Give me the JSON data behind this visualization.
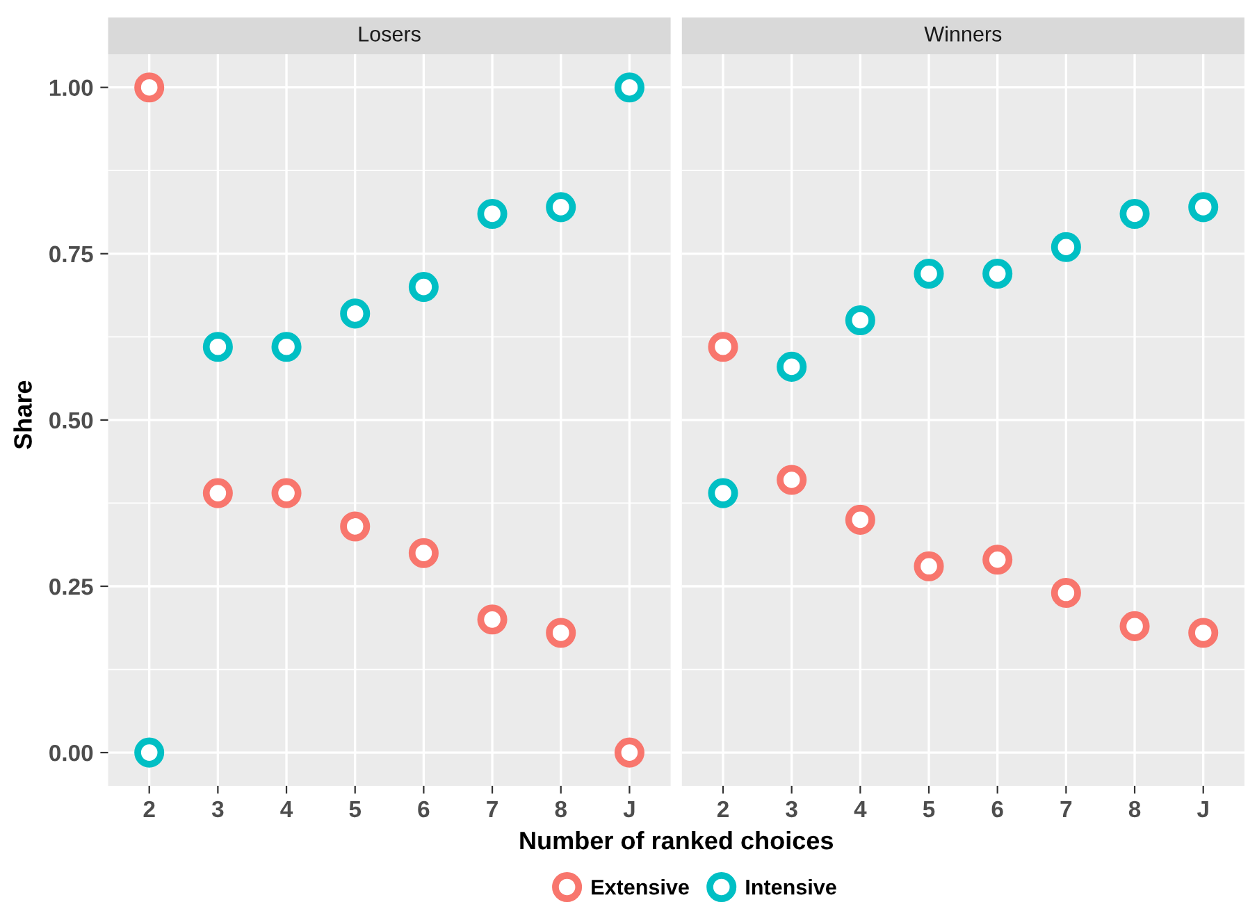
{
  "chart_data": [
    {
      "type": "scatter",
      "title": "Losers",
      "xlabel": "Number of ranked choices",
      "ylabel": "Share",
      "categories": [
        "2",
        "3",
        "4",
        "5",
        "6",
        "7",
        "8",
        "J"
      ],
      "series": [
        {
          "name": "Extensive",
          "color": "#f8766d",
          "values": [
            1.0,
            0.39,
            0.39,
            0.34,
            0.3,
            0.2,
            0.18,
            0.0
          ]
        },
        {
          "name": "Intensive",
          "color": "#00bfc4",
          "values": [
            0.0,
            0.61,
            0.61,
            0.66,
            0.7,
            0.81,
            0.82,
            1.0
          ]
        }
      ],
      "ylim": [
        -0.05,
        1.05
      ],
      "yticks": [
        {
          "value": 0,
          "label": "0.00"
        },
        {
          "value": 0.25,
          "label": "0.25"
        },
        {
          "value": 0.5,
          "label": "0.50"
        },
        {
          "value": 0.75,
          "label": "0.75"
        },
        {
          "value": 1,
          "label": "1.00"
        }
      ],
      "grid": true,
      "marker": "circle",
      "legend": "bottom"
    },
    {
      "type": "scatter",
      "title": "Winners",
      "categories": [
        "2",
        "3",
        "4",
        "5",
        "6",
        "7",
        "8",
        "J"
      ],
      "series": [
        {
          "name": "Extensive",
          "color": "#f8766d",
          "values": [
            0.61,
            0.41,
            0.35,
            0.28,
            0.29,
            0.24,
            0.19,
            0.18
          ]
        },
        {
          "name": "Intensive",
          "color": "#00bfc4",
          "values": [
            0.39,
            0.58,
            0.65,
            0.72,
            0.72,
            0.76,
            0.81,
            0.82
          ]
        }
      ],
      "ylim": [
        -0.05,
        1.05
      ],
      "yticks": [
        0,
        0.25,
        0.5,
        0.75,
        1
      ],
      "grid": true,
      "marker": "circle",
      "tick_labels": "x"
    }
  ]
}
